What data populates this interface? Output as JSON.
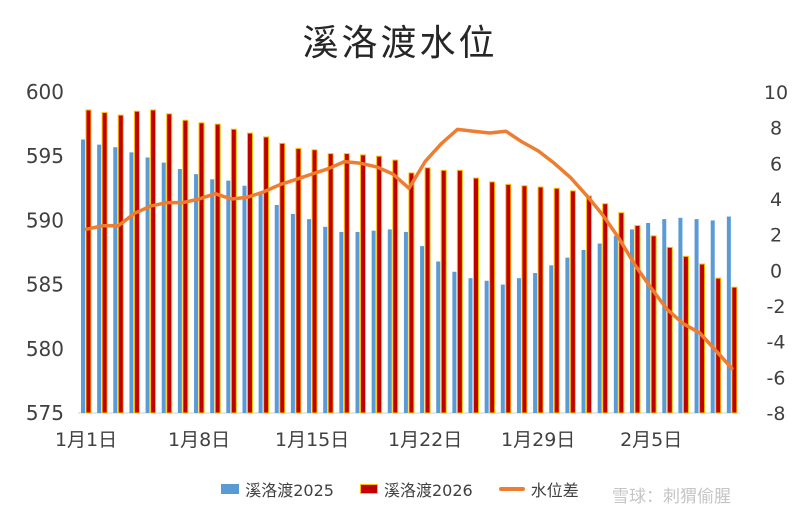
{
  "chart_data": {
    "type": "bar",
    "title": "溪洛渡水位",
    "x_tick_labels": [
      "1月1日",
      "1月8日",
      "1月15日",
      "1月22日",
      "1月29日",
      "2月5日"
    ],
    "y_left_ticks": [
      575,
      580,
      585,
      590,
      595,
      600
    ],
    "y_right_ticks": [
      -8,
      -6,
      -4,
      -2,
      0,
      2,
      4,
      6,
      8,
      10
    ],
    "ylim_left": [
      575,
      600
    ],
    "ylim_right": [
      -8,
      10
    ],
    "legend_position": "bottom",
    "grid": false,
    "series": [
      {
        "name": "溪洛渡2025",
        "type": "bar",
        "axis": "left",
        "color": "#5B9BD5",
        "values": [
          596.3,
          595.9,
          595.7,
          595.3,
          594.9,
          594.5,
          594.0,
          593.6,
          593.2,
          593.1,
          592.7,
          592.1,
          591.2,
          590.5,
          590.1,
          589.5,
          589.1,
          589.1,
          589.2,
          589.3,
          589.1,
          588.0,
          586.8,
          586.0,
          585.5,
          585.3,
          585.0,
          585.5,
          585.9,
          586.5,
          587.1,
          587.7,
          588.2,
          588.8,
          589.3,
          589.8,
          590.1,
          590.2,
          590.1,
          590.0,
          590.3
        ]
      },
      {
        "name": "溪洛渡2026",
        "type": "bar",
        "axis": "left",
        "color": "#C00000",
        "border_color": "#FFC000",
        "values": [
          598.6,
          598.4,
          598.2,
          598.5,
          598.6,
          598.3,
          597.8,
          597.6,
          597.5,
          597.1,
          596.8,
          596.5,
          596.0,
          595.6,
          595.5,
          595.2,
          595.2,
          595.1,
          595.0,
          594.7,
          593.7,
          594.1,
          593.9,
          593.9,
          593.3,
          593.0,
          592.8,
          592.7,
          592.6,
          592.5,
          592.3,
          591.9,
          591.3,
          590.6,
          589.6,
          588.8,
          587.9,
          587.2,
          586.6,
          585.5,
          584.8
        ]
      },
      {
        "name": "水位差",
        "type": "line",
        "axis": "right",
        "color": "#ED7D31",
        "values": [
          2.3,
          2.5,
          2.5,
          3.2,
          3.6,
          3.8,
          3.8,
          4.0,
          4.3,
          4.0,
          4.1,
          4.4,
          4.8,
          5.1,
          5.4,
          5.7,
          6.1,
          6.0,
          5.8,
          5.4,
          4.6,
          6.1,
          7.1,
          7.9,
          7.8,
          7.7,
          7.8,
          7.2,
          6.7,
          6.0,
          5.2,
          4.2,
          3.1,
          1.8,
          0.3,
          -1.0,
          -2.2,
          -3.0,
          -3.5,
          -4.5,
          -5.5
        ]
      }
    ]
  },
  "legend": {
    "item1": "溪洛渡2025",
    "item2": "溪洛渡2026",
    "item3": "水位差"
  },
  "watermark": "雪球：刺猬偷腥"
}
